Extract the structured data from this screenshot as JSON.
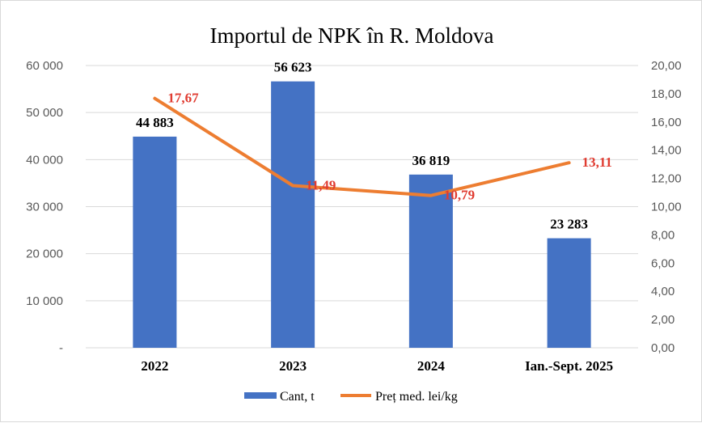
{
  "chart_data": {
    "type": "bar",
    "title": "Importul de NPK în R. Moldova",
    "categories": [
      "2022",
      "2023",
      "2024",
      "Ian.-Sept. 2025"
    ],
    "series": [
      {
        "name": "Cant, t",
        "type": "bar",
        "axis": "left",
        "color": "#4472c4",
        "values": [
          44883,
          56623,
          36819,
          23283
        ],
        "labels": [
          "44 883",
          "56 623",
          "36 819",
          "23 283"
        ]
      },
      {
        "name": "Preț med. lei/kg",
        "type": "line",
        "axis": "right",
        "color": "#ed7d31",
        "values": [
          17.67,
          11.49,
          10.79,
          13.11
        ],
        "labels": [
          "17,67",
          "11,49",
          "10,79",
          "13,11"
        ]
      }
    ],
    "y_left": {
      "min": 0,
      "max": 60000,
      "ticks": [
        "-",
        "10 000",
        "20 000",
        "30 000",
        "40 000",
        "50 000",
        "60 000"
      ]
    },
    "y_right": {
      "min": 0,
      "max": 20,
      "ticks": [
        "0,00",
        "2,00",
        "4,00",
        "6,00",
        "8,00",
        "10,00",
        "12,00",
        "14,00",
        "16,00",
        "18,00",
        "20,00"
      ]
    },
    "grid": true,
    "legend": "bottom",
    "colors": {
      "bar": "#4472c4",
      "line": "#ed7d31",
      "line_label": "#e03c31",
      "grid": "#d9d9d9"
    }
  }
}
